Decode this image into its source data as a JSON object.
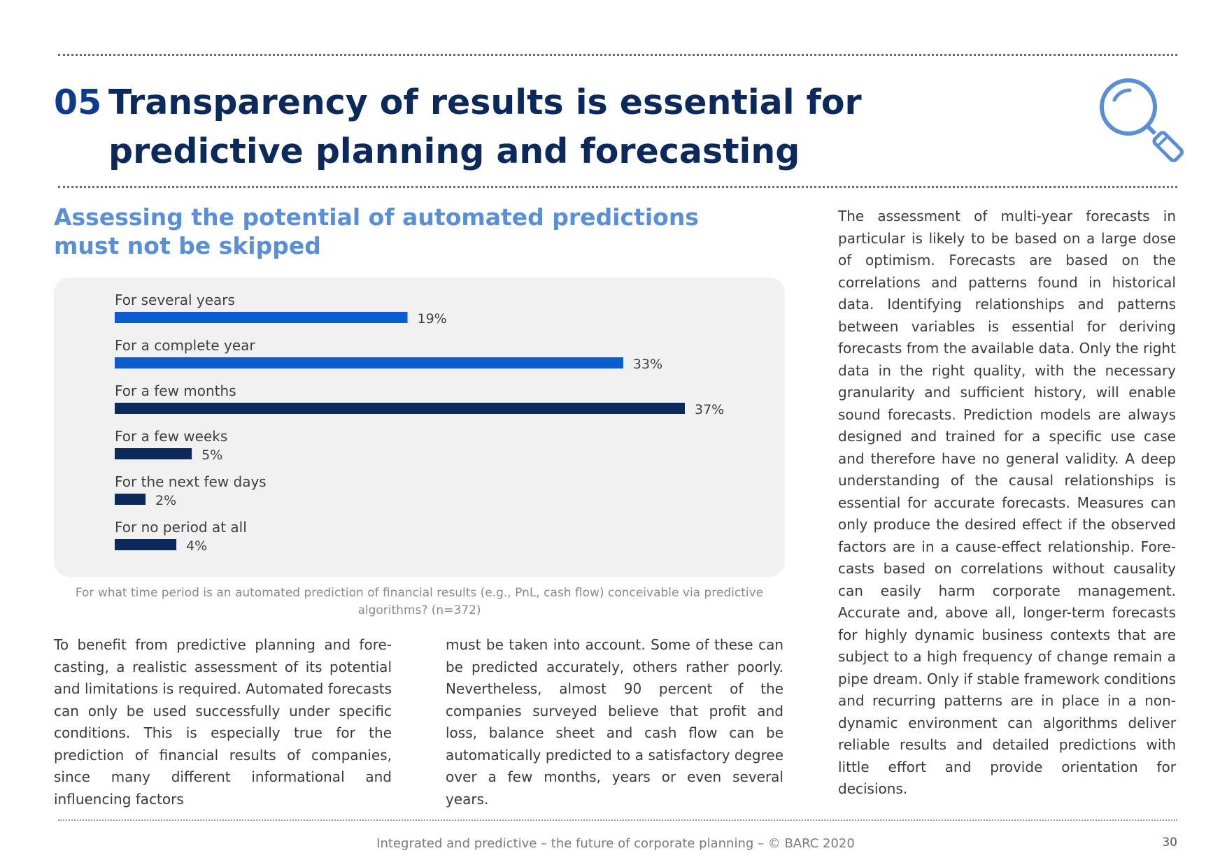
{
  "header": {
    "section_number": "05",
    "title": "Transparency of results is essential for predictive planning and forecasting"
  },
  "icons": {
    "header_icon": "magnifier-icon"
  },
  "colors": {
    "dark_navy": "#0b2a5b",
    "bright_blue": "#0a5ccf",
    "light_blue": "#5a8fd6",
    "panel_bg": "#f1f1f1"
  },
  "subtitle": "Assessing the potential of automated predictions must not be skipped",
  "chart_data": {
    "type": "bar",
    "orientation": "horizontal",
    "title": "",
    "categories": [
      "For several years",
      "For a complete year",
      "For a few months",
      "For a few weeks",
      "For the next few days",
      "For no period at all"
    ],
    "values": [
      19,
      33,
      37,
      5,
      2,
      4
    ],
    "value_labels": [
      "19%",
      "33%",
      "37%",
      "5%",
      "2%",
      "4%"
    ],
    "bar_colors": [
      "#0a5ccf",
      "#0a5ccf",
      "#0b2a5b",
      "#0b2a5b",
      "#0b2a5b",
      "#0b2a5b"
    ],
    "unit": "%",
    "xlim": [
      0,
      37
    ]
  },
  "chart_question": "For what time period is an automated prediction of financial results (e.g., PnL, cash flow) conceivable via predictive algorithms? (n=372)",
  "body": {
    "col_left": "To benefit from predictive planning and fore­casting, a realistic assessment of its potential and limitations is required. Automated forecasts can only be used successfully under specific condi­tions. This is especially true for the prediction of financial results of companies, since many different informational and influencing factors",
    "col_mid": "must be taken into account. Some of these can be predicted accurately, others rather poorly. Nevertheless, almost 90 percent of the companies surveyed believe that profit and loss, balance sheet and cash flow can be automatically predicted to a satisfactory degree over a few months, years or even several years.",
    "col_right": "The assessment of multi-year forecasts in particular is likely to be based on a large dose of optimism. Forecasts are based on the correlations and patterns found in historical data. Identifying relationships and patterns between variables is essential for deriving forecasts from the available data. Only the right data in the right quality, with the necessary granularity and sufficient history, will enable sound forecasts. Prediction models are always designed and trained for a specific use case and therefore have no general validity. A deep understanding of the causal relationships is essential for accurate forecasts. Measures can only produce the desired effect if the observed factors are in a cause-effect relationship. Fore­casts based on correlations without causality can easily harm corporate management. Accurate and, above all, longer-term forecasts for highly dynamic business contexts that are subject to a high frequency of change remain a pipe dream. Only if stable framework conditions and recurring patterns are in place in a non-dynamic environ­ment can algorithms deliver reliable results and detailed predictions with little effort and provide orientation for decisions."
  },
  "footer": {
    "text": "Integrated and predictive – the future of corporate planning  – © BARC 2020",
    "page_number": "30"
  }
}
